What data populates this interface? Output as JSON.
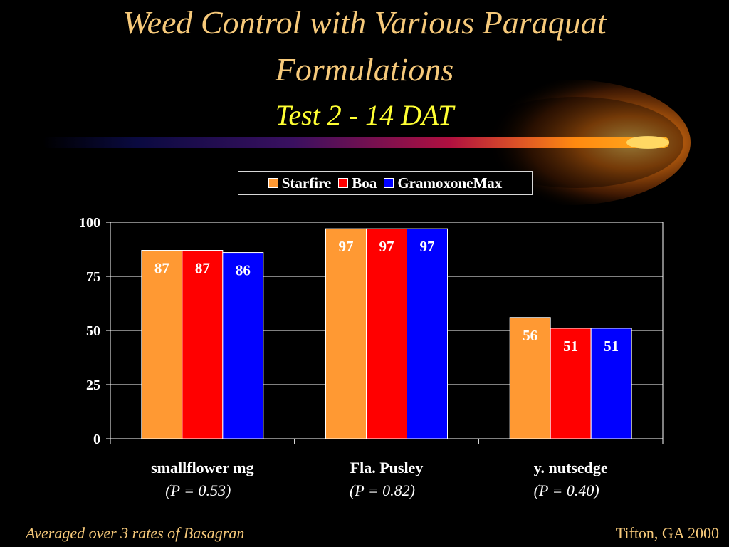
{
  "title_line1": "Weed Control with Various Paraquat",
  "title_line2": "Formulations",
  "subtitle": "Test 2 - 14 DAT",
  "footer_left": "Averaged over 3 rates of Basagran",
  "footer_right": "Tifton, GA 2000",
  "colors": {
    "starfire": "#ff9933",
    "boa": "#ff0000",
    "gramoxonemax": "#0000ff",
    "title": "#f6c97a",
    "subtitle": "#ffff33"
  },
  "chart_data": {
    "type": "bar",
    "categories": [
      "smallflower mg",
      "Fla. Pusley",
      "y. nutsedge"
    ],
    "category_notes": [
      "(P = 0.53)",
      "(P = 0.82)",
      "(P = 0.40)"
    ],
    "series": [
      {
        "name": "Starfire",
        "values": [
          87,
          97,
          56
        ],
        "color": "#ff9933"
      },
      {
        "name": "Boa",
        "values": [
          87,
          97,
          51
        ],
        "color": "#ff0000"
      },
      {
        "name": "GramoxoneMax",
        "values": [
          86,
          97,
          51
        ],
        "color": "#0000ff"
      }
    ],
    "ylim": [
      0,
      100
    ],
    "yticks": [
      "0",
      "25",
      "50",
      "75",
      "100"
    ],
    "grid": true,
    "legend_position": "top-center",
    "data_labels": true
  }
}
